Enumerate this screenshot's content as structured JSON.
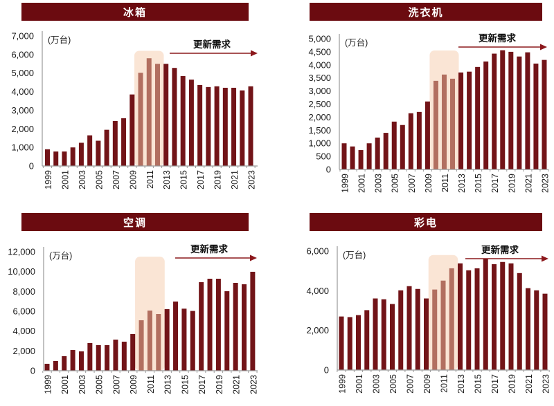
{
  "colors": {
    "header_bg": "#6B0B10",
    "header_text": "#FFFFFF",
    "bar": "#721418",
    "bar_highlight": "#B26F60",
    "highlight_bg": "#FAE5D5",
    "arrow": "#8C181C",
    "axis": "#999999",
    "label": "#1A1A1A"
  },
  "chart_data": [
    {
      "type": "bar",
      "title": "冰箱",
      "unit_label": "(万台)",
      "arrow_label": "更新需求",
      "ylim": [
        0,
        7000
      ],
      "ytick_step": 1000,
      "x": [
        1999,
        2000,
        2001,
        2002,
        2003,
        2004,
        2005,
        2006,
        2007,
        2008,
        2009,
        2010,
        2011,
        2012,
        2013,
        2014,
        2015,
        2016,
        2017,
        2018,
        2019,
        2020,
        2021,
        2022,
        2023
      ],
      "values": [
        900,
        780,
        780,
        1000,
        1250,
        1650,
        1360,
        1950,
        2420,
        2570,
        3850,
        5020,
        5800,
        5500,
        5500,
        5280,
        4840,
        4650,
        4360,
        4250,
        4290,
        4210,
        4210,
        4070,
        4290
      ],
      "xtick_labels": [
        "1999",
        "2001",
        "2003",
        "2005",
        "2007",
        "2009",
        "2011",
        "2013",
        "2015",
        "2017",
        "2019",
        "2021",
        "2023"
      ],
      "highlight_years": [
        2010,
        2011,
        2012
      ],
      "highlight_top": 6200,
      "grid": "off",
      "legend": "none"
    },
    {
      "type": "bar",
      "title": "洗衣机",
      "unit_label": "(万台)",
      "arrow_label": "更新需求",
      "ylim": [
        0,
        5000
      ],
      "ytick_step": 500,
      "x": [
        1999,
        2000,
        2001,
        2002,
        2003,
        2004,
        2005,
        2006,
        2007,
        2008,
        2009,
        2010,
        2011,
        2012,
        2013,
        2014,
        2015,
        2016,
        2017,
        2018,
        2019,
        2020,
        2021,
        2022,
        2023
      ],
      "values": [
        1000,
        880,
        740,
        1000,
        1220,
        1400,
        1830,
        1700,
        2150,
        2200,
        2600,
        3390,
        3630,
        3470,
        3710,
        3740,
        3920,
        4130,
        4430,
        4560,
        4500,
        4320,
        4480,
        4050,
        4190
      ],
      "xtick_labels": [
        "1999",
        "2001",
        "2003",
        "2005",
        "2007",
        "2009",
        "2011",
        "2013",
        "2015",
        "2017",
        "2019",
        "2021",
        "2023"
      ],
      "highlight_years": [
        2010,
        2011,
        2012
      ],
      "highlight_top": 4550,
      "grid": "off",
      "legend": "none"
    },
    {
      "type": "bar",
      "title": "空调",
      "unit_label": "(万台)",
      "arrow_label": "更新需求",
      "ylim": [
        0,
        12000
      ],
      "ytick_step": 2000,
      "x": [
        1999,
        2000,
        2001,
        2002,
        2003,
        2004,
        2005,
        2006,
        2007,
        2008,
        2009,
        2010,
        2011,
        2012,
        2013,
        2014,
        2015,
        2016,
        2017,
        2018,
        2019,
        2020,
        2021,
        2022,
        2023
      ],
      "values": [
        700,
        980,
        1470,
        2090,
        1950,
        2790,
        2580,
        2580,
        3140,
        2930,
        3700,
        5090,
        6070,
        5720,
        6210,
        6980,
        6260,
        6030,
        8930,
        9280,
        9280,
        8020,
        8860,
        8720,
        9980
      ],
      "xtick_labels": [
        "1999",
        "2001",
        "2003",
        "2005",
        "2007",
        "2009",
        "2011",
        "2013",
        "2015",
        "2017",
        "2019",
        "2021",
        "2023"
      ],
      "highlight_years": [
        2010,
        2011,
        2012
      ],
      "highlight_top": 11500,
      "grid": "off",
      "legend": "none"
    },
    {
      "type": "bar",
      "title": "彩电",
      "unit_label": "(万台)",
      "arrow_label": "更新需求",
      "ylim": [
        0,
        6000
      ],
      "ytick_step": 2000,
      "x": [
        1999,
        2000,
        2001,
        2002,
        2003,
        2004,
        2005,
        2006,
        2007,
        2008,
        2009,
        2010,
        2011,
        2012,
        2013,
        2014,
        2015,
        2016,
        2017,
        2018,
        2019,
        2020,
        2021,
        2022,
        2023
      ],
      "values": [
        2700,
        2670,
        2770,
        3020,
        3610,
        3570,
        3330,
        4020,
        4230,
        4090,
        3610,
        4060,
        4510,
        5130,
        5380,
        5030,
        5130,
        5620,
        5340,
        5450,
        5380,
        4890,
        4130,
        4020,
        3850
      ],
      "xtick_labels": [
        "1999",
        "2001",
        "2003",
        "2005",
        "2007",
        "2009",
        "2011",
        "2013",
        "2015",
        "2017",
        "2019",
        "2021",
        "2023"
      ],
      "highlight_years": [
        2010,
        2011,
        2012
      ],
      "highlight_top": 5800,
      "grid": "off",
      "legend": "none"
    }
  ]
}
